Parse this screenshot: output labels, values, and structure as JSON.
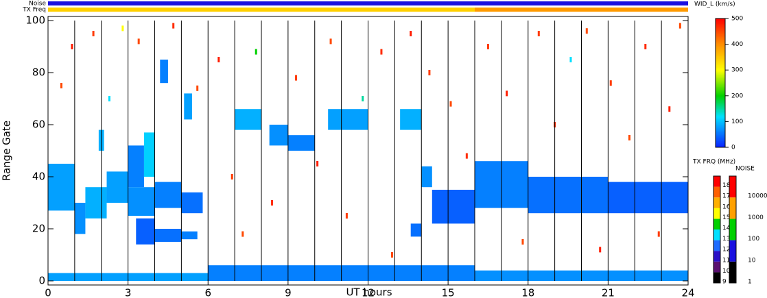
{
  "chart_data": {
    "type": "heatmap",
    "xlabel": "UT hours",
    "ylabel": "Range Gate",
    "xlim": [
      0,
      24
    ],
    "xticks": [
      0,
      3,
      6,
      9,
      12,
      15,
      18,
      21,
      24
    ],
    "ylim": [
      0,
      100
    ],
    "yticks": [
      0,
      20,
      40,
      60,
      80,
      100
    ],
    "hour_lines": [
      1,
      2,
      3,
      4,
      5,
      6,
      7,
      8,
      9,
      10,
      11,
      12,
      13,
      14,
      15,
      16,
      17,
      18,
      19,
      20,
      21,
      22,
      23
    ],
    "strips": [
      {
        "name": "Noise",
        "segments": [
          [
            0,
            24,
            "#1a10e0"
          ]
        ]
      },
      {
        "name": "TX Freq",
        "segments": [
          [
            0,
            16,
            "#ffd000"
          ],
          [
            16,
            24,
            "#ff9a00"
          ]
        ]
      }
    ],
    "cells": [
      [
        0,
        1,
        27,
        45,
        80
      ],
      [
        1,
        1.4,
        18,
        30,
        70
      ],
      [
        1.4,
        2.2,
        24,
        36,
        90
      ],
      [
        2.2,
        3,
        30,
        42,
        80
      ],
      [
        3,
        3.6,
        36,
        52,
        60
      ],
      [
        3.6,
        4,
        40,
        57,
        110
      ],
      [
        3,
        4,
        25,
        36,
        70
      ],
      [
        4,
        5,
        28,
        38,
        60
      ],
      [
        5,
        5.8,
        26,
        34,
        50
      ],
      [
        3.3,
        4,
        14,
        24,
        40
      ],
      [
        4,
        5,
        15,
        20,
        50
      ],
      [
        5,
        5.6,
        16,
        19,
        60
      ],
      [
        1.9,
        2.1,
        50,
        58,
        90
      ],
      [
        4.2,
        4.5,
        76,
        85,
        60
      ],
      [
        5.1,
        5.4,
        62,
        72,
        80
      ],
      [
        7,
        8,
        58,
        66,
        90
      ],
      [
        8.3,
        9,
        52,
        60,
        70
      ],
      [
        9,
        10,
        50,
        56,
        60
      ],
      [
        10.5,
        12,
        58,
        66,
        80
      ],
      [
        13.2,
        14,
        58,
        66,
        90
      ],
      [
        14,
        14.4,
        36,
        44,
        70
      ],
      [
        14.4,
        16,
        22,
        35,
        40
      ],
      [
        13.6,
        14,
        17,
        22,
        50
      ],
      [
        16,
        18,
        28,
        46,
        60
      ],
      [
        18,
        21,
        26,
        40,
        50
      ],
      [
        21,
        24,
        26,
        38,
        40
      ],
      [
        0,
        6,
        0,
        3,
        80
      ],
      [
        6,
        16,
        0,
        6,
        60
      ],
      [
        16,
        24,
        0,
        4,
        70
      ]
    ],
    "points": [
      [
        0.5,
        75,
        450
      ],
      [
        0.9,
        90,
        480
      ],
      [
        1.7,
        95,
        460
      ],
      [
        2.3,
        70,
        120
      ],
      [
        2.8,
        97,
        300
      ],
      [
        3.4,
        92,
        450
      ],
      [
        4.7,
        98,
        470
      ],
      [
        5.6,
        74,
        450
      ],
      [
        6.4,
        85,
        480
      ],
      [
        6.9,
        40,
        460
      ],
      [
        7.3,
        18,
        450
      ],
      [
        7.8,
        88,
        200
      ],
      [
        8.4,
        30,
        470
      ],
      [
        9.3,
        78,
        460
      ],
      [
        10.1,
        45,
        480
      ],
      [
        10.6,
        92,
        450
      ],
      [
        11.2,
        25,
        460
      ],
      [
        11.8,
        70,
        150
      ],
      [
        12.5,
        88,
        470
      ],
      [
        12.9,
        10,
        450
      ],
      [
        13.6,
        95,
        480
      ],
      [
        14.3,
        80,
        460
      ],
      [
        15.1,
        68,
        450
      ],
      [
        15.7,
        48,
        470
      ],
      [
        16.5,
        90,
        460
      ],
      [
        17.2,
        72,
        480
      ],
      [
        17.8,
        15,
        450
      ],
      [
        18.4,
        95,
        460
      ],
      [
        19.0,
        60,
        470
      ],
      [
        19.6,
        85,
        120
      ],
      [
        20.2,
        96,
        450
      ],
      [
        20.7,
        12,
        480
      ],
      [
        21.1,
        76,
        460
      ],
      [
        21.8,
        55,
        450
      ],
      [
        22.4,
        90,
        470
      ],
      [
        22.9,
        18,
        460
      ],
      [
        23.3,
        66,
        480
      ],
      [
        23.7,
        98,
        450
      ]
    ],
    "colorbar": {
      "label": "WID_L (km/s)",
      "lim": [
        0,
        500
      ],
      "ticks": [
        0,
        100,
        200,
        300,
        400,
        500
      ],
      "stops": [
        {
          "value": 0,
          "color": "#0a20ff"
        },
        {
          "value": 120,
          "color": "#00e0ff"
        },
        {
          "value": 200,
          "color": "#00d000"
        },
        {
          "value": 300,
          "color": "#ffff00"
        },
        {
          "value": 400,
          "color": "#ff9000"
        },
        {
          "value": 500,
          "color": "#ff0000"
        }
      ]
    },
    "txfreq": {
      "label": "TX FRQ (MHz)",
      "ticks": [
        9,
        10,
        11,
        12,
        13,
        14,
        15,
        16,
        17,
        18
      ],
      "colors": [
        "#000000",
        "#5a1070",
        "#2a10c8",
        "#1e6cff",
        "#00e0ff",
        "#00d000",
        "#ffff00",
        "#ffb000",
        "#ff6000",
        "#ff0000"
      ]
    },
    "noise": {
      "label": "NOISE",
      "ticks": [
        1,
        10,
        100,
        1000,
        10000
      ],
      "colors": [
        "#000000",
        "#1a10e0",
        "#00d000",
        "#ffa000",
        "#ff0000"
      ]
    }
  }
}
